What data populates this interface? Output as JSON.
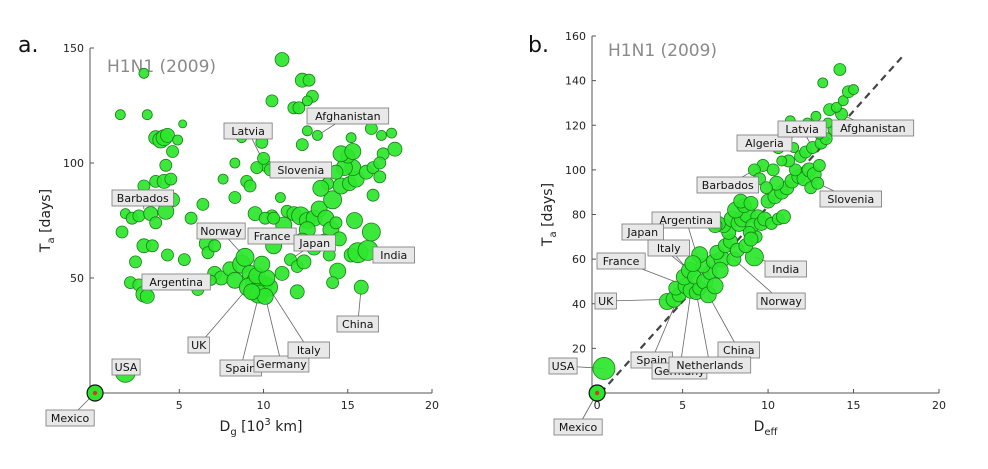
{
  "colors": {
    "marker_fill": "#2ce62c",
    "marker_edge": "#1a7d1a",
    "origin_dot": "#e0332e",
    "label_bg": "#e8e8e8",
    "dashed_line": "#444444"
  },
  "chart_data": [
    {
      "type": "scatter",
      "panel_label": "a.",
      "title": "H1N1 (2009)",
      "xlabel_main": "D",
      "xlabel_sub": "g",
      "xlabel_rest": " [10",
      "xlabel_sup": "3",
      "xlabel_end": " km]",
      "ylabel_main": "T",
      "ylabel_sub": "a",
      "ylabel_rest": " [days]",
      "xlim": [
        -0.3,
        20
      ],
      "ylim": [
        0,
        150
      ],
      "xticks": [
        5,
        10,
        15,
        20
      ],
      "yticks": [
        50,
        100,
        150
      ],
      "origin": {
        "x": 0,
        "y": 0
      },
      "points": [
        [
          1.5,
          121
        ],
        [
          2.9,
          139
        ],
        [
          3.1,
          121
        ],
        [
          3.6,
          111
        ],
        [
          3.9,
          110
        ],
        [
          4.1,
          111
        ],
        [
          4.3,
          112
        ],
        [
          4.6,
          105
        ],
        [
          4.9,
          110
        ],
        [
          5.2,
          117
        ],
        [
          4.2,
          99
        ],
        [
          3.6,
          92
        ],
        [
          4.1,
          92
        ],
        [
          4.5,
          93
        ],
        [
          2.9,
          90
        ],
        [
          3.3,
          85
        ],
        [
          4.0,
          84
        ],
        [
          4.6,
          84
        ],
        [
          1.8,
          78
        ],
        [
          2.2,
          76
        ],
        [
          2.6,
          77
        ],
        [
          3.3,
          78
        ],
        [
          3.6,
          74
        ],
        [
          4.2,
          79
        ],
        [
          1.6,
          70
        ],
        [
          2.9,
          64
        ],
        [
          3.4,
          64
        ],
        [
          4.3,
          60
        ],
        [
          5.3,
          58
        ],
        [
          2.4,
          57
        ],
        [
          2.1,
          48
        ],
        [
          2.6,
          47
        ],
        [
          2.9,
          43
        ],
        [
          3.1,
          42
        ],
        [
          5.7,
          76
        ],
        [
          6.4,
          82
        ],
        [
          7.6,
          93
        ],
        [
          6.6,
          65
        ],
        [
          6.7,
          61
        ],
        [
          7.1,
          52
        ],
        [
          7.5,
          50
        ],
        [
          8.0,
          54
        ],
        [
          8.3,
          49
        ],
        [
          8.7,
          56
        ],
        [
          8.9,
          59
        ],
        [
          9.2,
          52
        ],
        [
          9.4,
          48
        ],
        [
          9.1,
          46
        ],
        [
          9.5,
          44
        ],
        [
          9.8,
          45
        ],
        [
          10.0,
          47
        ],
        [
          10.3,
          46
        ],
        [
          9.7,
          43
        ],
        [
          10.1,
          42
        ],
        [
          9.3,
          44
        ],
        [
          9.6,
          51
        ],
        [
          10.2,
          50
        ],
        [
          9.9,
          56
        ],
        [
          10.6,
          64
        ],
        [
          11.1,
          52
        ],
        [
          11.6,
          58
        ],
        [
          12.0,
          55
        ],
        [
          12.4,
          57
        ],
        [
          12.0,
          44
        ],
        [
          11.2,
          73
        ],
        [
          11.4,
          79
        ],
        [
          11.0,
          85
        ],
        [
          10.5,
          77
        ],
        [
          11.8,
          78
        ],
        [
          12.2,
          77
        ],
        [
          12.6,
          75
        ],
        [
          13.0,
          76
        ],
        [
          13.3,
          80
        ],
        [
          13.7,
          76
        ],
        [
          14.1,
          84
        ],
        [
          14.0,
          71
        ],
        [
          14.3,
          74
        ],
        [
          13.6,
          66
        ],
        [
          14.5,
          67
        ],
        [
          12.6,
          71
        ],
        [
          12.3,
          66
        ],
        [
          13.0,
          63
        ],
        [
          13.9,
          60
        ],
        [
          14.4,
          53
        ],
        [
          15.2,
          60
        ],
        [
          15.6,
          61
        ],
        [
          16.2,
          62
        ],
        [
          16.4,
          70
        ],
        [
          15.4,
          75
        ],
        [
          14.6,
          90
        ],
        [
          15.1,
          91
        ],
        [
          15.5,
          93
        ],
        [
          15.3,
          98
        ],
        [
          14.8,
          98
        ],
        [
          15.0,
          103
        ],
        [
          14.6,
          104
        ],
        [
          15.3,
          105
        ],
        [
          14.3,
          96
        ],
        [
          13.8,
          91
        ],
        [
          16.1,
          96
        ],
        [
          16.5,
          98
        ],
        [
          17.1,
          104
        ],
        [
          17.8,
          106
        ],
        [
          17.0,
          112
        ],
        [
          17.6,
          113
        ],
        [
          16.9,
          100
        ],
        [
          16.4,
          115
        ],
        [
          15.2,
          111
        ],
        [
          14.7,
          120
        ],
        [
          13.2,
          112
        ],
        [
          12.6,
          114
        ],
        [
          12.3,
          108
        ],
        [
          11.8,
          124
        ],
        [
          12.1,
          124
        ],
        [
          10.5,
          127
        ],
        [
          11.1,
          145
        ],
        [
          12.3,
          136
        ],
        [
          12.7,
          136
        ],
        [
          12.9,
          129
        ],
        [
          12.6,
          127
        ],
        [
          10.1,
          99
        ],
        [
          10.4,
          97
        ],
        [
          9.6,
          98
        ],
        [
          10.0,
          102
        ],
        [
          9.9,
          109
        ],
        [
          8.7,
          111
        ],
        [
          8.3,
          100
        ],
        [
          9.0,
          92
        ],
        [
          8.3,
          85
        ],
        [
          9.2,
          90
        ],
        [
          7.1,
          64
        ],
        [
          7.6,
          71
        ],
        [
          8.3,
          71
        ],
        [
          9.5,
          78
        ],
        [
          10.1,
          76
        ],
        [
          10.6,
          76
        ],
        [
          6.1,
          45
        ],
        [
          6.9,
          49
        ],
        [
          15.8,
          46
        ],
        [
          14.1,
          48
        ],
        [
          1.8,
          9
        ],
        [
          13.4,
          89
        ],
        [
          16.9,
          94
        ],
        [
          16.5,
          86
        ]
      ],
      "sizes": [
        5,
        5,
        5,
        7,
        8,
        8,
        7,
        6,
        5,
        4,
        6,
        6,
        7,
        6,
        6,
        6,
        5,
        7,
        5,
        6,
        6,
        7,
        6,
        8,
        6,
        7,
        6,
        6,
        6,
        6,
        6,
        6,
        8,
        7,
        6,
        6,
        5,
        7,
        6,
        7,
        7,
        7,
        8,
        9,
        9,
        8,
        8,
        9,
        9,
        9,
        9,
        9,
        9,
        8,
        8,
        8,
        8,
        8,
        8,
        7,
        6,
        6,
        7,
        7,
        8,
        6,
        5,
        6,
        7,
        9,
        8,
        8,
        8,
        8,
        9,
        8,
        6,
        7,
        7,
        8,
        8,
        7,
        6,
        8,
        7,
        10,
        10,
        9,
        8,
        8,
        7,
        8,
        8,
        8,
        7,
        8,
        8,
        7,
        6,
        7,
        6,
        6,
        7,
        5,
        5,
        6,
        6,
        5,
        5,
        5,
        5,
        6,
        6,
        6,
        6,
        7,
        7,
        6,
        6,
        5,
        6,
        6,
        6,
        6,
        6,
        5,
        5,
        6,
        6,
        6,
        6,
        6,
        6,
        7,
        6,
        6,
        6,
        5,
        7,
        6,
        10,
        8,
        6,
        6
      ],
      "annotations": [
        {
          "text": "Mexico",
          "x": 0,
          "y": 0
        },
        {
          "text": "USA",
          "x": 1.8,
          "y": 9
        },
        {
          "text": "Barbados",
          "x": 2.9,
          "y": 80
        },
        {
          "text": "Argentina",
          "x": 7.1,
          "y": 52
        },
        {
          "text": "Latvia",
          "x": 10.1,
          "y": 99
        },
        {
          "text": "Slovenia",
          "x": 10.0,
          "y": 100
        },
        {
          "text": "Afghanistan",
          "x": 13.2,
          "y": 112
        },
        {
          "text": "Norway",
          "x": 8.9,
          "y": 59
        },
        {
          "text": "France",
          "x": 10.6,
          "y": 64
        },
        {
          "text": "Japan",
          "x": 11.6,
          "y": 58
        },
        {
          "text": "India",
          "x": 16.2,
          "y": 62
        },
        {
          "text": "China",
          "x": 15.8,
          "y": 46
        },
        {
          "text": "UK",
          "x": 9.1,
          "y": 46
        },
        {
          "text": "Spain",
          "x": 9.8,
          "y": 45
        },
        {
          "text": "Germany",
          "x": 10.1,
          "y": 42
        },
        {
          "text": "Italy",
          "x": 10.3,
          "y": 46
        }
      ]
    },
    {
      "type": "scatter",
      "panel_label": "b.",
      "title": "H1N1 (2009)",
      "xlabel_main": "D",
      "xlabel_sub": "eff",
      "ylabel_main": "T",
      "ylabel_sub": "a",
      "ylabel_rest": " [days]",
      "xlim": [
        -0.3,
        20
      ],
      "ylim": [
        0,
        160
      ],
      "xticks": [
        0,
        5,
        10,
        15,
        20
      ],
      "yticks": [
        20,
        40,
        60,
        80,
        100,
        120,
        140,
        160
      ],
      "fit_line": {
        "x": [
          0.2,
          18
        ],
        "y": [
          0,
          152
        ]
      },
      "origin": {
        "x": 0,
        "y": 0
      },
      "points": [
        [
          0.4,
          11
        ],
        [
          4.1,
          41
        ],
        [
          4.5,
          42
        ],
        [
          4.8,
          44
        ],
        [
          4.6,
          47
        ],
        [
          5.2,
          48
        ],
        [
          5.5,
          46
        ],
        [
          5.8,
          45
        ],
        [
          6.0,
          47
        ],
        [
          5.1,
          52
        ],
        [
          5.4,
          55
        ],
        [
          5.7,
          52
        ],
        [
          6.3,
          50
        ],
        [
          6.6,
          54
        ],
        [
          6.2,
          57
        ],
        [
          6.8,
          59
        ],
        [
          7.3,
          60
        ],
        [
          7.0,
          63
        ],
        [
          7.5,
          66
        ],
        [
          7.8,
          68
        ],
        [
          8.0,
          60
        ],
        [
          8.2,
          64
        ],
        [
          7.7,
          72
        ],
        [
          7.4,
          75
        ],
        [
          7.1,
          76
        ],
        [
          6.9,
          75
        ],
        [
          7.9,
          78
        ],
        [
          8.3,
          76
        ],
        [
          8.5,
          78
        ],
        [
          8.8,
          80
        ],
        [
          8.1,
          82
        ],
        [
          8.6,
          84
        ],
        [
          8.4,
          86
        ],
        [
          9.0,
          85
        ],
        [
          9.4,
          79
        ],
        [
          9.1,
          75
        ],
        [
          9.6,
          76
        ],
        [
          9.8,
          78
        ],
        [
          10.2,
          76
        ],
        [
          10.6,
          78
        ],
        [
          9.3,
          70
        ],
        [
          8.9,
          72
        ],
        [
          10.0,
          86
        ],
        [
          10.4,
          88
        ],
        [
          10.8,
          90
        ],
        [
          11.1,
          92
        ],
        [
          10.5,
          94
        ],
        [
          11.4,
          95
        ],
        [
          11.8,
          97
        ],
        [
          12.1,
          96
        ],
        [
          12.4,
          100
        ],
        [
          12.7,
          98
        ],
        [
          13.0,
          102
        ],
        [
          12.5,
          92
        ],
        [
          12.9,
          94
        ],
        [
          11.6,
          100
        ],
        [
          11.2,
          104
        ],
        [
          11.9,
          106
        ],
        [
          12.2,
          108
        ],
        [
          12.6,
          110
        ],
        [
          13.1,
          112
        ],
        [
          13.4,
          114
        ],
        [
          13.0,
          116
        ],
        [
          13.8,
          118
        ],
        [
          14.1,
          120
        ],
        [
          14.3,
          125
        ],
        [
          13.6,
          127
        ],
        [
          14.0,
          128
        ],
        [
          14.4,
          131
        ],
        [
          14.7,
          135
        ],
        [
          15.0,
          136
        ],
        [
          14.2,
          145
        ],
        [
          13.2,
          139
        ],
        [
          12.0,
          118
        ],
        [
          11.3,
          122
        ],
        [
          11.0,
          115
        ],
        [
          10.6,
          110
        ],
        [
          10.1,
          112
        ],
        [
          9.7,
          102
        ],
        [
          9.2,
          100
        ],
        [
          9.5,
          96
        ],
        [
          9.9,
          92
        ],
        [
          10.3,
          100
        ],
        [
          10.8,
          104
        ],
        [
          11.5,
          110
        ],
        [
          12.3,
          121
        ],
        [
          12.8,
          124
        ],
        [
          13.5,
          121
        ],
        [
          7.2,
          55
        ],
        [
          6.0,
          62
        ],
        [
          5.6,
          58
        ],
        [
          6.5,
          44
        ],
        [
          6.9,
          48
        ],
        [
          9.2,
          61
        ],
        [
          10.9,
          79
        ],
        [
          8.7,
          66
        ],
        [
          9.0,
          69
        ]
      ],
      "sizes": [
        11,
        8,
        8,
        7,
        7,
        8,
        8,
        7,
        7,
        8,
        8,
        7,
        8,
        7,
        7,
        7,
        8,
        7,
        7,
        7,
        7,
        7,
        7,
        7,
        7,
        7,
        8,
        8,
        8,
        8,
        8,
        7,
        7,
        7,
        7,
        7,
        7,
        7,
        6,
        6,
        6,
        6,
        7,
        7,
        7,
        7,
        7,
        7,
        7,
        7,
        7,
        7,
        6,
        6,
        6,
        6,
        6,
        6,
        6,
        6,
        6,
        6,
        5,
        5,
        5,
        6,
        6,
        5,
        5,
        6,
        5,
        6,
        5,
        5,
        5,
        7,
        6,
        6,
        6,
        6,
        6,
        6,
        6,
        5,
        5,
        5,
        5,
        5,
        8,
        8,
        8,
        8,
        8,
        9,
        7,
        7,
        7
      ],
      "annotations": [
        {
          "text": "Mexico",
          "x": 0,
          "y": 0
        },
        {
          "text": "USA",
          "x": 0.4,
          "y": 11
        },
        {
          "text": "Algeria",
          "x": 10.6,
          "y": 110
        },
        {
          "text": "Latvia",
          "x": 12.6,
          "y": 110
        },
        {
          "text": "Afghanistan",
          "x": 13.6,
          "y": 127
        },
        {
          "text": "Barbados",
          "x": 9.7,
          "y": 102
        },
        {
          "text": "Slovenia",
          "x": 12.9,
          "y": 94
        },
        {
          "text": "Argentina",
          "x": 6.3,
          "y": 50
        },
        {
          "text": "Japan",
          "x": 5.4,
          "y": 55
        },
        {
          "text": "Italy",
          "x": 5.7,
          "y": 52
        },
        {
          "text": "France",
          "x": 5.2,
          "y": 48
        },
        {
          "text": "India",
          "x": 9.2,
          "y": 61
        },
        {
          "text": "Norway",
          "x": 8.0,
          "y": 60
        },
        {
          "text": "UK",
          "x": 4.5,
          "y": 42
        },
        {
          "text": "China",
          "x": 6.5,
          "y": 44
        },
        {
          "text": "Spain",
          "x": 4.8,
          "y": 44
        },
        {
          "text": "Germany",
          "x": 5.5,
          "y": 46
        },
        {
          "text": "Netherlands",
          "x": 5.8,
          "y": 45
        }
      ]
    }
  ]
}
